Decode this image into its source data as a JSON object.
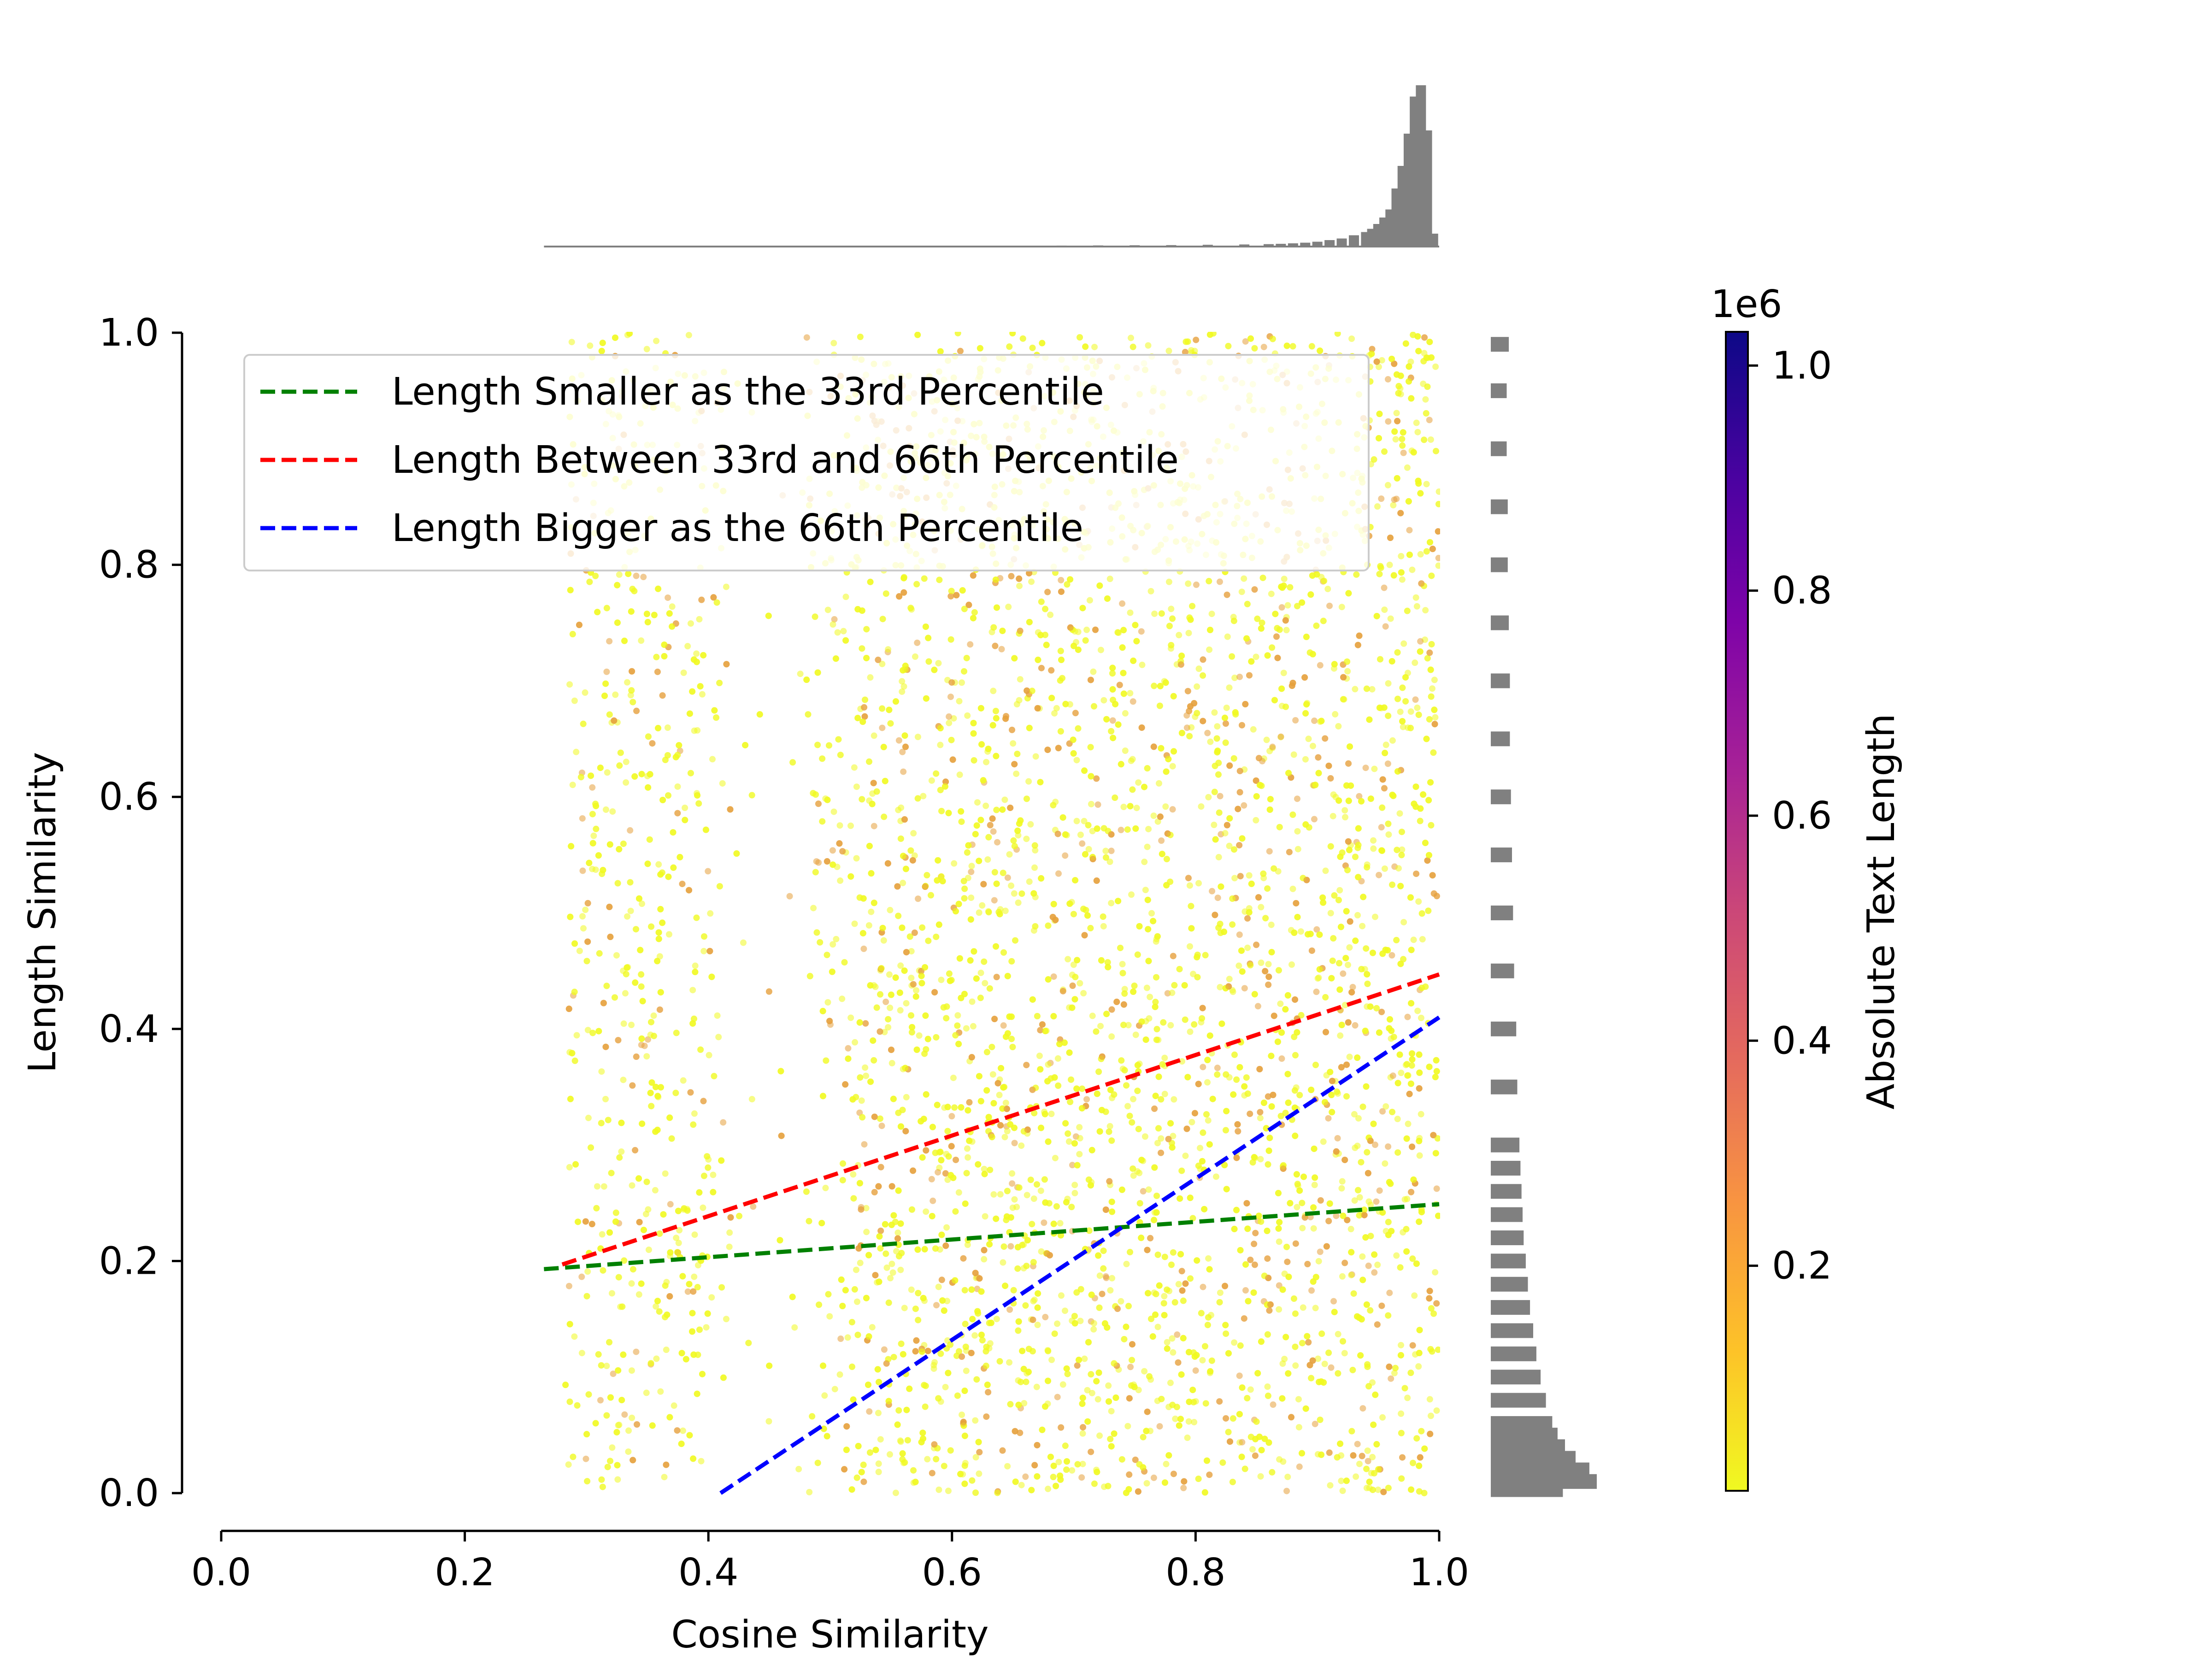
{
  "chart_data": {
    "type": "scatter",
    "title": "",
    "xlabel": "Cosine Similarity",
    "ylabel": "Length Similarity",
    "xlim": [
      0.0,
      1.0
    ],
    "ylim": [
      0.0,
      1.0
    ],
    "xticks": [
      "0.0",
      "0.2",
      "0.4",
      "0.6",
      "0.8",
      "1.0"
    ],
    "yticks": [
      "0.0",
      "0.2",
      "0.4",
      "0.6",
      "0.8",
      "1.0"
    ],
    "grid": false,
    "legend_position": "upper-left",
    "point_color_range": [
      "#f0f921",
      "#e5a03c"
    ],
    "series": [
      {
        "name": "Length Smaller as the 33rd Percentile",
        "color": "#008000",
        "style": "dashed",
        "x": [
          0.265,
          1.0
        ],
        "y": [
          0.193,
          0.249
        ]
      },
      {
        "name": "Length Between 33rd and 66th Percentile",
        "color": "#ff0000",
        "style": "dashed",
        "x": [
          0.28,
          1.0
        ],
        "y": [
          0.197,
          0.447
        ]
      },
      {
        "name": "Length Bigger as the 66th Percentile",
        "color": "#0000ff",
        "style": "dashed",
        "x": [
          0.41,
          1.0
        ],
        "y": [
          0.0,
          0.41
        ]
      }
    ],
    "top_histogram": {
      "color": "#808080",
      "bin_centers": [
        0.27,
        0.3,
        0.33,
        0.36,
        0.39,
        0.42,
        0.45,
        0.48,
        0.51,
        0.54,
        0.57,
        0.6,
        0.63,
        0.66,
        0.69,
        0.72,
        0.75,
        0.78,
        0.81,
        0.84,
        0.86,
        0.87,
        0.88,
        0.89,
        0.9,
        0.91,
        0.92,
        0.93,
        0.94,
        0.945,
        0.95,
        0.955,
        0.96,
        0.965,
        0.97,
        0.975,
        0.98,
        0.985,
        0.99,
        0.995
      ],
      "relative_counts": [
        0.003,
        0.003,
        0.003,
        0.003,
        0.003,
        0.003,
        0.003,
        0.003,
        0.003,
        0.004,
        0.004,
        0.005,
        0.005,
        0.005,
        0.006,
        0.007,
        0.008,
        0.009,
        0.011,
        0.013,
        0.015,
        0.017,
        0.02,
        0.024,
        0.03,
        0.04,
        0.05,
        0.07,
        0.09,
        0.11,
        0.14,
        0.18,
        0.23,
        0.36,
        0.5,
        0.7,
        0.93,
        1.0,
        0.72,
        0.08
      ]
    },
    "right_histogram": {
      "color": "#808080",
      "bin_centers": [
        0.99,
        0.95,
        0.9,
        0.85,
        0.8,
        0.75,
        0.7,
        0.65,
        0.6,
        0.55,
        0.5,
        0.45,
        0.4,
        0.35,
        0.3,
        0.28,
        0.26,
        0.24,
        0.22,
        0.2,
        0.18,
        0.16,
        0.14,
        0.12,
        0.1,
        0.08,
        0.06,
        0.05,
        0.04,
        0.03,
        0.02,
        0.01,
        0.003
      ],
      "relative_counts": [
        0.17,
        0.15,
        0.15,
        0.16,
        0.16,
        0.17,
        0.18,
        0.18,
        0.19,
        0.2,
        0.21,
        0.22,
        0.24,
        0.25,
        0.27,
        0.28,
        0.29,
        0.3,
        0.31,
        0.33,
        0.35,
        0.37,
        0.4,
        0.43,
        0.47,
        0.52,
        0.58,
        0.63,
        0.7,
        0.8,
        0.93,
        1.0,
        0.68
      ]
    },
    "colorbar": {
      "label": "Absolute Text Length",
      "offset_text": "1e6",
      "ticks": [
        "0.2",
        "0.4",
        "0.6",
        "0.8",
        "1.0"
      ],
      "range": [
        0.0,
        1.03
      ],
      "colormap": "plasma_r"
    }
  }
}
